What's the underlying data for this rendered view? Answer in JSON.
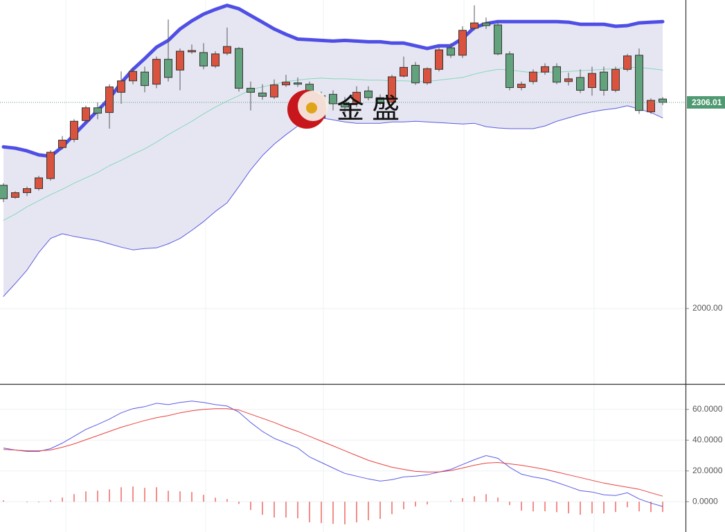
{
  "chart_data": [
    {
      "type": "candlestick",
      "watermark": "金 盛",
      "open": [
        2183,
        2165,
        2172,
        2178,
        2193,
        2239,
        2251,
        2279,
        2298,
        2291,
        2321,
        2338,
        2351,
        2333,
        2370,
        2354,
        2381,
        2380,
        2360,
        2379,
        2386,
        2327,
        2320,
        2314,
        2332,
        2335,
        2333,
        2283,
        2318,
        2306,
        2304,
        2323,
        2313,
        2306,
        2345,
        2361,
        2335,
        2355,
        2387,
        2376,
        2416,
        2424,
        2421,
        2378,
        2328,
        2337,
        2351,
        2359,
        2337,
        2343,
        2328,
        2351,
        2324,
        2355,
        2376,
        2292,
        2311
      ],
      "high": [
        2186,
        2174,
        2181,
        2197,
        2235,
        2256,
        2281,
        2301,
        2306,
        2333,
        2352,
        2358,
        2359,
        2374,
        2429,
        2386,
        2392,
        2394,
        2382,
        2417,
        2388,
        2337,
        2333,
        2340,
        2347,
        2343,
        2337,
        2322,
        2324,
        2314,
        2330,
        2330,
        2318,
        2347,
        2374,
        2366,
        2358,
        2388,
        2394,
        2419,
        2450,
        2432,
        2425,
        2382,
        2337,
        2355,
        2364,
        2364,
        2350,
        2355,
        2359,
        2359,
        2359,
        2378,
        2386,
        2312,
        2314
      ],
      "low": [
        2158,
        2163,
        2167,
        2175,
        2190,
        2236,
        2247,
        2276,
        2281,
        2267,
        2304,
        2333,
        2321,
        2327,
        2337,
        2324,
        2378,
        2355,
        2357,
        2376,
        2322,
        2294,
        2310,
        2311,
        2329,
        2329,
        2289,
        2278,
        2294,
        2289,
        2299,
        2309,
        2302,
        2302,
        2343,
        2332,
        2332,
        2352,
        2372,
        2372,
        2413,
        2415,
        2376,
        2324,
        2324,
        2333,
        2347,
        2333,
        2331,
        2320,
        2316,
        2316,
        2321,
        2352,
        2289,
        2289,
        2302
      ],
      "close": [
        2163,
        2172,
        2178,
        2194,
        2232,
        2250,
        2278,
        2298,
        2290,
        2329,
        2338,
        2352,
        2331,
        2370,
        2343,
        2382,
        2383,
        2360,
        2378,
        2389,
        2327,
        2321,
        2315,
        2332,
        2336,
        2333,
        2294,
        2316,
        2304,
        2299,
        2321,
        2313,
        2306,
        2344,
        2358,
        2335,
        2356,
        2384,
        2376,
        2413,
        2424,
        2420,
        2378,
        2328,
        2333,
        2351,
        2359,
        2336,
        2341,
        2324,
        2349,
        2324,
        2355,
        2375,
        2294,
        2309,
        2306.01
      ],
      "up_color": "#d9533f",
      "down_color": "#62a27c",
      "bands": [
        {
          "color": "#4f4fe6",
          "style": "thick",
          "values": [
            2240,
            2238,
            2234,
            2228,
            2226,
            2240,
            2258,
            2276,
            2294,
            2312,
            2335,
            2355,
            2371,
            2388,
            2398,
            2415,
            2427,
            2437,
            2444,
            2450,
            2445,
            2435,
            2425,
            2415,
            2407,
            2400,
            2399,
            2398,
            2397,
            2398,
            2397,
            2396,
            2396,
            2394,
            2394,
            2390,
            2386,
            2390,
            2390,
            2401,
            2417,
            2423,
            2426,
            2426,
            2426,
            2426,
            2426,
            2426,
            2425,
            2422,
            2422,
            2422,
            2419,
            2420,
            2424,
            2425,
            2426
          ]
        },
        {
          "color": "#86d6bc",
          "style": "thin",
          "values": [
            2131,
            2140,
            2151,
            2160,
            2169,
            2177,
            2186,
            2194,
            2202,
            2212,
            2220,
            2229,
            2237,
            2247,
            2258,
            2268,
            2278,
            2289,
            2299,
            2308,
            2316,
            2325,
            2329,
            2333,
            2337,
            2339,
            2341,
            2342,
            2341,
            2341,
            2340,
            2339,
            2339,
            2338,
            2338,
            2337,
            2337,
            2339,
            2341,
            2343,
            2348,
            2352,
            2355,
            2354,
            2352,
            2350,
            2351,
            2351,
            2352,
            2353,
            2354,
            2355,
            2356,
            2358,
            2358,
            2356,
            2354
          ]
        },
        {
          "color": "#5a5ae0",
          "style": "thin",
          "values": [
            2018,
            2037,
            2057,
            2083,
            2104,
            2111,
            2107,
            2104,
            2101,
            2096,
            2091,
            2087,
            2089,
            2090,
            2096,
            2104,
            2116,
            2129,
            2144,
            2157,
            2181,
            2206,
            2227,
            2244,
            2258,
            2271,
            2278,
            2283,
            2280,
            2277,
            2275,
            2275,
            2275,
            2277,
            2277,
            2278,
            2277,
            2276,
            2275,
            2274,
            2275,
            2270,
            2268,
            2267,
            2267,
            2267,
            2271,
            2278,
            2283,
            2288,
            2292,
            2295,
            2297,
            2301,
            2296,
            2291,
            2283
          ]
        }
      ],
      "band_fill": "#e6e6f2",
      "last_price_color": "#4f9a72",
      "ylim": [
        1888,
        2458
      ],
      "yticks": [
        {
          "value": 2000,
          "label": "2000.00"
        }
      ],
      "grid": true
    },
    {
      "type": "macd",
      "series": [
        {
          "color": "#5a5ae6",
          "values": [
            34.9,
            33.6,
            32.7,
            32.7,
            34.5,
            38.1,
            42.5,
            47.0,
            50.2,
            53.7,
            57.8,
            60.5,
            61.8,
            64.0,
            63.1,
            64.5,
            65.4,
            64.5,
            63.1,
            62.2,
            58.2,
            51.5,
            45.7,
            41.2,
            38.1,
            34.9,
            29.1,
            25.5,
            21.9,
            18.4,
            16.6,
            14.8,
            13.4,
            14.3,
            16.1,
            16.6,
            17.5,
            19.3,
            21.0,
            24.2,
            27.3,
            30.0,
            28.2,
            22.4,
            17.9,
            16.1,
            14.8,
            12.5,
            9.9,
            7.2,
            6.3,
            4.5,
            4.0,
            5.8,
            1.8,
            -0.9,
            -3.1
          ]
        },
        {
          "color": "#e8413c",
          "values": [
            34.0,
            33.6,
            33.1,
            33.1,
            33.6,
            35.4,
            37.6,
            40.3,
            43.0,
            45.7,
            48.4,
            50.6,
            52.8,
            54.6,
            56.0,
            57.8,
            59.1,
            60.0,
            60.5,
            60.5,
            59.6,
            56.9,
            54.2,
            51.5,
            48.4,
            45.7,
            42.5,
            39.4,
            36.3,
            33.1,
            30.0,
            26.9,
            24.6,
            22.4,
            21.0,
            19.7,
            19.3,
            19.3,
            20.2,
            21.9,
            23.7,
            25.1,
            25.5,
            24.6,
            23.7,
            22.4,
            21.0,
            19.3,
            17.5,
            15.7,
            13.9,
            12.1,
            10.7,
            9.4,
            8.1,
            5.8,
            3.6
          ]
        }
      ],
      "histogram": {
        "color": "#e8413c",
        "values": [
          0.9,
          0,
          -0.4,
          -0.4,
          0.9,
          2.7,
          4.9,
          6.7,
          7.2,
          8.0,
          9.4,
          9.9,
          9.0,
          9.4,
          7.1,
          6.7,
          6.3,
          4.5,
          2.6,
          1.7,
          -1.4,
          -5.4,
          -8.5,
          -10.3,
          -10.3,
          -10.8,
          -13.4,
          -13.9,
          -14.4,
          -14.7,
          -13.4,
          -12.1,
          -11.2,
          -8.1,
          -4.9,
          -3.1,
          -1.8,
          0,
          0.8,
          2.3,
          3.6,
          4.9,
          2.7,
          -2.2,
          -5.8,
          -6.3,
          -6.2,
          -6.8,
          -7.6,
          -8.5,
          -7.6,
          -7.6,
          -6.7,
          -3.6,
          -6.3,
          -6.7,
          -6.7
        ]
      },
      "ylim": [
        -19.7,
        76.1
      ],
      "yticks": [
        {
          "value": 0,
          "label": "0.0000"
        },
        {
          "value": 20,
          "label": "20.0000"
        },
        {
          "value": 40,
          "label": "40.0000"
        },
        {
          "value": 60,
          "label": "60.0000"
        }
      ],
      "grid": true
    }
  ]
}
